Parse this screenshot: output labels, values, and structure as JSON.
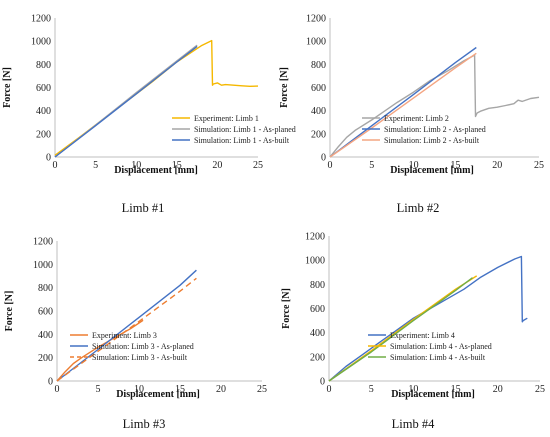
{
  "chart_data": [
    {
      "type": "line",
      "caption": "Limb #1",
      "xlabel": "Displacement [mm]",
      "ylabel": "Force [N]",
      "xlim": [
        0,
        25
      ],
      "ylim": [
        0,
        1200
      ],
      "xticks": [
        0,
        5,
        10,
        15,
        20,
        25
      ],
      "yticks": [
        0,
        200,
        400,
        600,
        800,
        1000,
        1200
      ],
      "grid": false,
      "legend": "bottom-right",
      "series": [
        {
          "name": "Experiment: Limb 1",
          "color": "#f5b800",
          "dash": false,
          "x": [
            0,
            3,
            6,
            9,
            12,
            15,
            18,
            19.3,
            19.4,
            19.5,
            20,
            20.5,
            21,
            22,
            23,
            24,
            25
          ],
          "y": [
            15,
            170,
            330,
            490,
            650,
            820,
            960,
            1005,
            620,
            630,
            640,
            620,
            625,
            620,
            615,
            610,
            612
          ]
        },
        {
          "name": "Simulation: Limb 1 - As-planed",
          "color": "#a6a6a6",
          "dash": false,
          "x": [
            0,
            5,
            10,
            15,
            17.5
          ],
          "y": [
            0,
            275,
            555,
            830,
            965
          ]
        },
        {
          "name": "Simulation: Limb 1 - As-built",
          "color": "#4472c4",
          "dash": false,
          "x": [
            0,
            5,
            10,
            15,
            17.5
          ],
          "y": [
            0,
            270,
            545,
            820,
            955
          ]
        }
      ]
    },
    {
      "type": "line",
      "caption": "Limb #2",
      "xlabel": "Displacement [mm]",
      "ylabel": "Force [N]",
      "xlim": [
        0,
        25
      ],
      "ylim": [
        0,
        1200
      ],
      "xticks": [
        0,
        5,
        10,
        15,
        20,
        25
      ],
      "yticks": [
        0,
        200,
        400,
        600,
        800,
        1000,
        1200
      ],
      "grid": false,
      "legend": "bottom-right",
      "series": [
        {
          "name": "Experiment: Limb 2",
          "color": "#a6a6a6",
          "dash": false,
          "x": [
            0,
            1,
            2,
            3,
            5,
            8,
            10,
            12,
            14,
            16,
            17.3,
            17.4,
            17.6,
            18,
            19,
            20,
            21,
            22,
            22.5,
            23,
            24,
            25
          ],
          "y": [
            0,
            90,
            170,
            230,
            320,
            470,
            560,
            660,
            740,
            830,
            880,
            350,
            380,
            395,
            420,
            430,
            445,
            460,
            490,
            480,
            505,
            515
          ]
        },
        {
          "name": "Simulation: Limb 2 - As-planed",
          "color": "#4472c4",
          "dash": false,
          "x": [
            0,
            5,
            10,
            15,
            17.5
          ],
          "y": [
            0,
            270,
            540,
            815,
            945
          ]
        },
        {
          "name": "Simulation: Limb 2 - As-built",
          "color": "#f4a582",
          "dash": false,
          "x": [
            0,
            5,
            10,
            15,
            17.5
          ],
          "y": [
            0,
            250,
            510,
            770,
            895
          ]
        }
      ]
    },
    {
      "type": "line",
      "caption": "Limb #3",
      "xlabel": "Displacement [mm]",
      "ylabel": "Force [N]",
      "xlim": [
        0,
        25
      ],
      "ylim": [
        0,
        1200
      ],
      "xticks": [
        0,
        5,
        10,
        15,
        20,
        25
      ],
      "yticks": [
        0,
        200,
        400,
        600,
        800,
        1000,
        1200
      ],
      "grid": false,
      "legend": "bottom-right",
      "series": [
        {
          "name": "Experiment: Limb 3",
          "color": "#ed7d31",
          "dash": false,
          "x": [
            0,
            1,
            2,
            3,
            5,
            7,
            9,
            10.5
          ],
          "y": [
            0,
            80,
            150,
            200,
            290,
            370,
            450,
            520
          ]
        },
        {
          "name": "Simulation: Limb 3 - As-planed",
          "color": "#4472c4",
          "dash": false,
          "x": [
            0,
            5,
            10,
            15,
            17
          ],
          "y": [
            0,
            270,
            545,
            820,
            950
          ]
        },
        {
          "name": "Simulation: Limb 3 - As-built",
          "color": "#ed7d31",
          "dash": true,
          "x": [
            0,
            5,
            10,
            15,
            17
          ],
          "y": [
            0,
            255,
            510,
            770,
            880
          ]
        }
      ]
    },
    {
      "type": "line",
      "caption": "Limb #4",
      "xlabel": "Displacement [mm]",
      "ylabel": "Force [N]",
      "xlim": [
        0,
        25
      ],
      "ylim": [
        0,
        1200
      ],
      "xticks": [
        0,
        5,
        10,
        15,
        20,
        25
      ],
      "yticks": [
        0,
        200,
        400,
        600,
        800,
        1000,
        1200
      ],
      "grid": false,
      "legend": "bottom-right",
      "series": [
        {
          "name": "Experiment: Limb 4",
          "color": "#4472c4",
          "dash": false,
          "x": [
            0,
            2,
            4,
            6,
            8,
            10,
            12,
            14,
            16,
            18,
            20,
            22,
            22.8,
            22.9,
            23,
            23.5
          ],
          "y": [
            0,
            120,
            220,
            320,
            420,
            520,
            600,
            680,
            760,
            860,
            940,
            1010,
            1030,
            490,
            500,
            520
          ]
        },
        {
          "name": "Simulation: Limb 4 - As-planed",
          "color": "#f5b800",
          "dash": false,
          "x": [
            0,
            5,
            10,
            15,
            17.5
          ],
          "y": [
            0,
            250,
            510,
            760,
            870
          ]
        },
        {
          "name": "Simulation: Limb 4 - As-built",
          "color": "#70ad47",
          "dash": false,
          "x": [
            0,
            5,
            10,
            15,
            17
          ],
          "y": [
            0,
            240,
            500,
            750,
            855
          ]
        }
      ]
    }
  ]
}
